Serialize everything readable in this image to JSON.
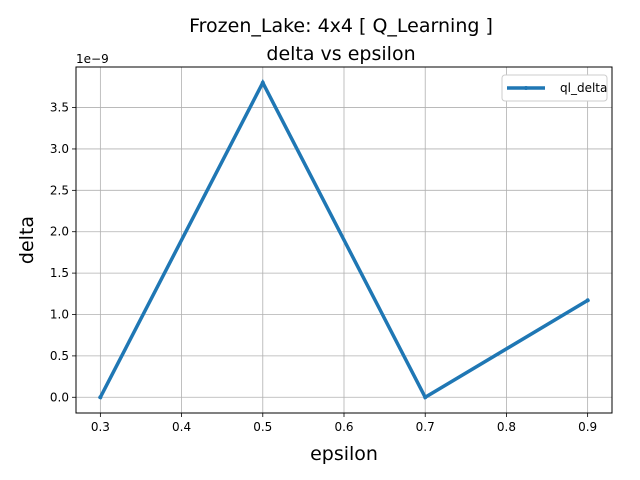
{
  "chart_data": {
    "type": "line",
    "title_line1": "Frozen_Lake: 4x4 [ Q_Learning ]",
    "title_line2": "delta vs epsilon",
    "xlabel": "epsilon",
    "ylabel": "delta",
    "y_offset_label": "1e−9",
    "xlim": [
      0.27,
      0.93
    ],
    "ylim": [
      -0.19,
      3.99
    ],
    "x_ticks": [
      0.3,
      0.4,
      0.5,
      0.6,
      0.7,
      0.8,
      0.9
    ],
    "x_tick_labels": [
      "0.3",
      "0.4",
      "0.5",
      "0.6",
      "0.7",
      "0.8",
      "0.9"
    ],
    "y_ticks": [
      0.0,
      0.5,
      1.0,
      1.5,
      2.0,
      2.5,
      3.0,
      3.5
    ],
    "y_tick_labels": [
      "0.0",
      "0.5",
      "1.0",
      "1.5",
      "2.0",
      "2.5",
      "3.0",
      "3.5"
    ],
    "grid": true,
    "legend_position": "top-right",
    "series": [
      {
        "name": "ql_delta",
        "color": "#1f77b4",
        "x": [
          0.3,
          0.5,
          0.7,
          0.9
        ],
        "y": [
          0.0,
          3.8,
          0.0,
          1.17
        ]
      }
    ]
  }
}
